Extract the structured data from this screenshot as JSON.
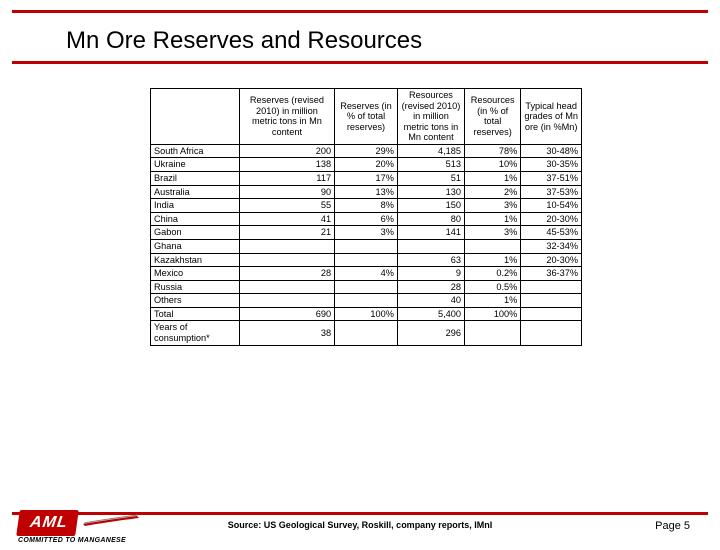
{
  "slide": {
    "title": "Mn Ore Reserves and Resources",
    "source": "Source: US Geological Survey, Roskill, company reports, IMnI",
    "page_label": "Page 5"
  },
  "logo": {
    "text": "AML",
    "tagline": "COMMITTED TO MANGANESE"
  },
  "colors": {
    "rule": "#c00000",
    "logo_bg": "#c00000",
    "text": "#000000",
    "bg": "#ffffff"
  },
  "table": {
    "headers": [
      "",
      "Reserves (revised 2010) in million metric tons in Mn content",
      "Reserves (in % of total reserves)",
      "Resources (revised 2010) in million metric tons in Mn content",
      "Resources (in % of total reserves)",
      "Typical head grades of Mn ore (in %Mn)"
    ],
    "rows": [
      {
        "c": "South Africa",
        "r": "200",
        "rp": "29%",
        "s": "4,185",
        "sp": "78%",
        "g": "30-48%"
      },
      {
        "c": "Ukraine",
        "r": "138",
        "rp": "20%",
        "s": "513",
        "sp": "10%",
        "g": "30-35%"
      },
      {
        "c": "Brazil",
        "r": "117",
        "rp": "17%",
        "s": "51",
        "sp": "1%",
        "g": "37-51%"
      },
      {
        "c": "Australia",
        "r": "90",
        "rp": "13%",
        "s": "130",
        "sp": "2%",
        "g": "37-53%"
      },
      {
        "c": "India",
        "r": "55",
        "rp": "8%",
        "s": "150",
        "sp": "3%",
        "g": "10-54%"
      },
      {
        "c": "China",
        "r": "41",
        "rp": "6%",
        "s": "80",
        "sp": "1%",
        "g": "20-30%"
      },
      {
        "c": "Gabon",
        "r": "21",
        "rp": "3%",
        "s": "141",
        "sp": "3%",
        "g": "45-53%"
      },
      {
        "c": "Ghana",
        "r": "",
        "rp": "",
        "s": "",
        "sp": "",
        "g": "32-34%"
      },
      {
        "c": "Kazakhstan",
        "r": "",
        "rp": "",
        "s": "63",
        "sp": "1%",
        "g": "20-30%"
      },
      {
        "c": "Mexico",
        "r": "28",
        "rp": "4%",
        "s": "9",
        "sp": "0.2%",
        "g": "36-37%"
      },
      {
        "c": "Russia",
        "r": "",
        "rp": "",
        "s": "28",
        "sp": "0.5%",
        "g": ""
      },
      {
        "c": "Others",
        "r": "",
        "rp": "",
        "s": "40",
        "sp": "1%",
        "g": ""
      },
      {
        "c": "Total",
        "r": "690",
        "rp": "100%",
        "s": "5,400",
        "sp": "100%",
        "g": ""
      },
      {
        "c": "Years of consumption*",
        "r": "38",
        "rp": "",
        "s": "296",
        "sp": "",
        "g": ""
      }
    ]
  }
}
